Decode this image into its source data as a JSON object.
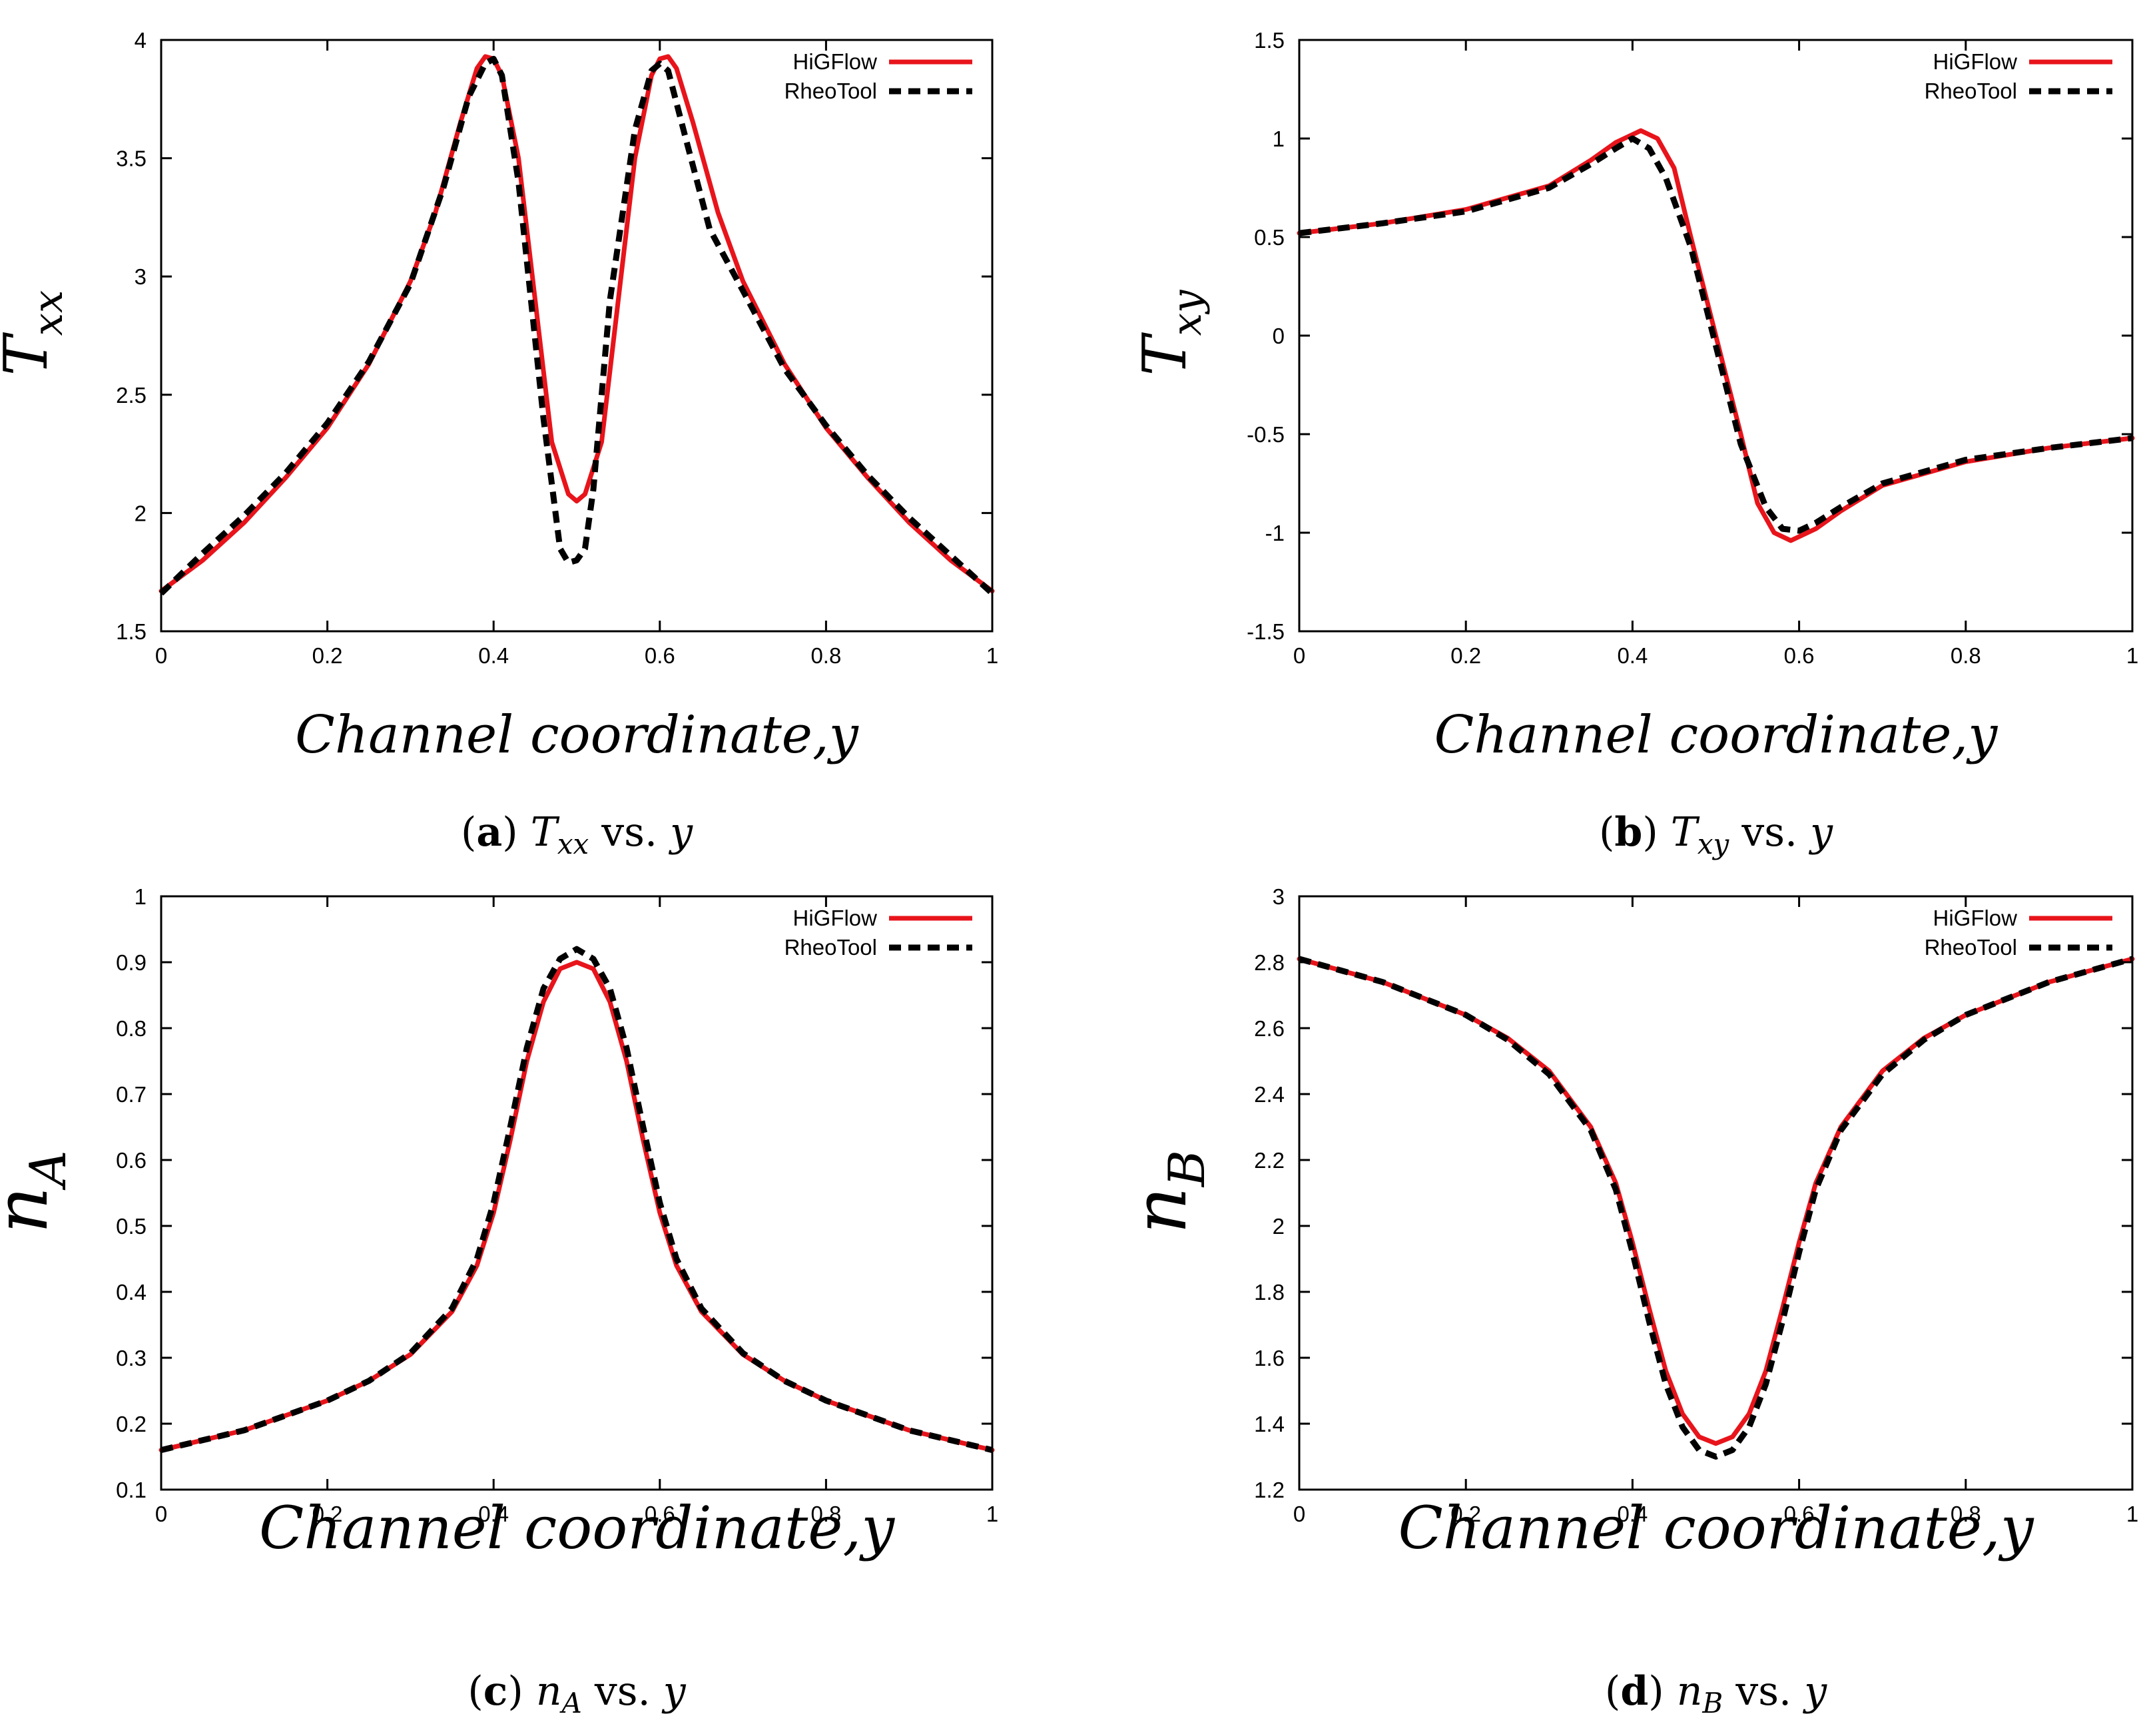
{
  "figure": {
    "captions": [
      {
        "letter": "a",
        "symbol": "T",
        "sub": "xx",
        "suffix": " vs. ",
        "var": "y"
      },
      {
        "letter": "b",
        "symbol": "T",
        "sub": "xy",
        "suffix": " vs. ",
        "var": "y"
      },
      {
        "letter": "c",
        "symbol": "n",
        "sub": "A",
        "suffix": " vs. ",
        "var": "y"
      },
      {
        "letter": "d",
        "symbol": "n",
        "sub": "B",
        "suffix": " vs. ",
        "var": "y"
      }
    ]
  },
  "colors": {
    "higflow": "#e8141b",
    "rheotool": "#000000",
    "axis": "#000000"
  },
  "chart_data": [
    {
      "type": "line",
      "id": "a",
      "ylabel_symbol": "T",
      "ylabel_sub": "xx",
      "xlabel": "Channel coordinate,y",
      "xlim": [
        0,
        1
      ],
      "ylim": [
        1.5,
        4
      ],
      "xticks": [
        0,
        0.2,
        0.4,
        0.6,
        0.8,
        1
      ],
      "xtick_labels": [
        "0",
        "0.2",
        "0.4",
        "0.6",
        "0.8",
        "1"
      ],
      "yticks": [
        1.5,
        2,
        2.5,
        3,
        3.5,
        4
      ],
      "ytick_labels": [
        "1.5",
        "2",
        "2.5",
        "3",
        "3.5",
        "4"
      ],
      "legend": [
        "HiGFlow",
        "RheoTool"
      ],
      "series": [
        {
          "name": "HiGFlow",
          "style": "solid",
          "x": [
            0,
            0.05,
            0.1,
            0.15,
            0.2,
            0.25,
            0.3,
            0.33,
            0.36,
            0.38,
            0.39,
            0.4,
            0.41,
            0.43,
            0.45,
            0.47,
            0.49,
            0.5,
            0.51,
            0.53,
            0.55,
            0.57,
            0.59,
            0.6,
            0.61,
            0.62,
            0.64,
            0.67,
            0.7,
            0.75,
            0.8,
            0.85,
            0.9,
            0.95,
            1
          ],
          "y": [
            1.67,
            1.8,
            1.96,
            2.15,
            2.36,
            2.63,
            2.98,
            3.27,
            3.65,
            3.88,
            3.93,
            3.92,
            3.85,
            3.5,
            2.9,
            2.3,
            2.08,
            2.05,
            2.08,
            2.3,
            2.9,
            3.5,
            3.85,
            3.92,
            3.93,
            3.88,
            3.65,
            3.27,
            2.98,
            2.63,
            2.36,
            2.15,
            1.96,
            1.8,
            1.67
          ]
        },
        {
          "name": "RheoTool",
          "style": "dashed",
          "x": [
            0,
            0.05,
            0.1,
            0.15,
            0.2,
            0.25,
            0.3,
            0.34,
            0.37,
            0.39,
            0.4,
            0.41,
            0.43,
            0.46,
            0.48,
            0.49,
            0.5,
            0.51,
            0.52,
            0.54,
            0.57,
            0.59,
            0.6,
            0.61,
            0.63,
            0.66,
            0.7,
            0.75,
            0.8,
            0.85,
            0.9,
            0.95,
            1
          ],
          "y": [
            1.66,
            1.83,
            1.99,
            2.17,
            2.38,
            2.64,
            2.97,
            3.38,
            3.76,
            3.9,
            3.92,
            3.85,
            3.4,
            2.4,
            1.85,
            1.79,
            1.8,
            1.85,
            2.1,
            2.9,
            3.62,
            3.87,
            3.9,
            3.87,
            3.6,
            3.2,
            2.94,
            2.61,
            2.37,
            2.16,
            1.98,
            1.82,
            1.66
          ]
        }
      ]
    },
    {
      "type": "line",
      "id": "b",
      "ylabel_symbol": "T",
      "ylabel_sub": "xy",
      "xlabel": "Channel coordinate,y",
      "xlim": [
        0,
        1
      ],
      "ylim": [
        -1.5,
        1.5
      ],
      "xticks": [
        0,
        0.2,
        0.4,
        0.6,
        0.8,
        1
      ],
      "xtick_labels": [
        "0",
        "0.2",
        "0.4",
        "0.6",
        "0.8",
        "1"
      ],
      "yticks": [
        -1.5,
        -1,
        -0.5,
        0,
        0.5,
        1,
        1.5
      ],
      "ytick_labels": [
        "-1.5",
        "-1",
        "-0.5",
        "0",
        "0.5",
        "1",
        "1.5"
      ],
      "legend": [
        "HiGFlow",
        "RheoTool"
      ],
      "series": [
        {
          "name": "HiGFlow",
          "style": "solid",
          "x": [
            0,
            0.1,
            0.2,
            0.3,
            0.35,
            0.38,
            0.41,
            0.43,
            0.45,
            0.47,
            0.5,
            0.53,
            0.55,
            0.57,
            0.59,
            0.62,
            0.65,
            0.7,
            0.8,
            0.9,
            1
          ],
          "y": [
            0.52,
            0.57,
            0.64,
            0.76,
            0.89,
            0.98,
            1.04,
            1.0,
            0.85,
            0.5,
            0.0,
            -0.5,
            -0.85,
            -1.0,
            -1.04,
            -0.98,
            -0.89,
            -0.76,
            -0.64,
            -0.57,
            -0.52
          ]
        },
        {
          "name": "RheoTool",
          "style": "dashed",
          "x": [
            0,
            0.1,
            0.2,
            0.3,
            0.35,
            0.38,
            0.4,
            0.42,
            0.44,
            0.47,
            0.5,
            0.53,
            0.56,
            0.58,
            0.6,
            0.62,
            0.65,
            0.7,
            0.8,
            0.9,
            1
          ],
          "y": [
            0.52,
            0.57,
            0.63,
            0.75,
            0.87,
            0.95,
            1.0,
            0.95,
            0.8,
            0.45,
            -0.05,
            -0.55,
            -0.87,
            -0.98,
            -0.99,
            -0.95,
            -0.87,
            -0.75,
            -0.63,
            -0.57,
            -0.52
          ]
        }
      ]
    },
    {
      "type": "line",
      "id": "c",
      "ylabel_symbol": "n",
      "ylabel_sub": "A",
      "xlabel": "Channel coordinate,y",
      "xlim": [
        0,
        1
      ],
      "ylim": [
        0.1,
        1
      ],
      "xticks": [
        0,
        0.2,
        0.4,
        0.6,
        0.8,
        1
      ],
      "xtick_labels": [
        "0",
        "0.2",
        "0.4",
        "0.6",
        "0.8",
        "1"
      ],
      "yticks": [
        0.1,
        0.2,
        0.3,
        0.4,
        0.5,
        0.6,
        0.7,
        0.8,
        0.9,
        1
      ],
      "ytick_labels": [
        "0.1",
        "0.2",
        "0.3",
        "0.4",
        "0.5",
        "0.6",
        "0.7",
        "0.8",
        "0.9",
        "1"
      ],
      "legend": [
        "HiGFlow",
        "RheoTool"
      ],
      "series": [
        {
          "name": "HiGFlow",
          "style": "solid",
          "x": [
            0,
            0.1,
            0.2,
            0.25,
            0.3,
            0.35,
            0.38,
            0.4,
            0.42,
            0.44,
            0.46,
            0.48,
            0.5,
            0.52,
            0.54,
            0.56,
            0.58,
            0.6,
            0.62,
            0.65,
            0.7,
            0.75,
            0.8,
            0.9,
            1
          ],
          "y": [
            0.16,
            0.19,
            0.235,
            0.265,
            0.305,
            0.37,
            0.44,
            0.52,
            0.63,
            0.75,
            0.84,
            0.89,
            0.9,
            0.89,
            0.84,
            0.75,
            0.63,
            0.52,
            0.44,
            0.37,
            0.305,
            0.265,
            0.235,
            0.19,
            0.16
          ]
        },
        {
          "name": "RheoTool",
          "style": "dashed",
          "x": [
            0,
            0.1,
            0.2,
            0.25,
            0.3,
            0.35,
            0.38,
            0.4,
            0.42,
            0.44,
            0.46,
            0.48,
            0.5,
            0.52,
            0.54,
            0.56,
            0.58,
            0.6,
            0.62,
            0.65,
            0.7,
            0.75,
            0.8,
            0.9,
            1
          ],
          "y": [
            0.16,
            0.19,
            0.235,
            0.265,
            0.307,
            0.375,
            0.45,
            0.535,
            0.65,
            0.77,
            0.86,
            0.905,
            0.92,
            0.905,
            0.86,
            0.77,
            0.65,
            0.535,
            0.45,
            0.375,
            0.307,
            0.265,
            0.235,
            0.19,
            0.16
          ]
        }
      ]
    },
    {
      "type": "line",
      "id": "d",
      "ylabel_symbol": "n",
      "ylabel_sub": "B",
      "xlabel": "Channel coordinate,y",
      "xlim": [
        0,
        1
      ],
      "ylim": [
        1.2,
        3
      ],
      "xticks": [
        0,
        0.2,
        0.4,
        0.6,
        0.8,
        1
      ],
      "xtick_labels": [
        "0",
        "0.2",
        "0.4",
        "0.6",
        "0.8",
        "1"
      ],
      "yticks": [
        1.2,
        1.4,
        1.6,
        1.8,
        2,
        2.2,
        2.4,
        2.6,
        2.8,
        3
      ],
      "ytick_labels": [
        "1.2",
        "1.4",
        "1.6",
        "1.8",
        "2",
        "2.2",
        "2.4",
        "2.6",
        "2.8",
        "3"
      ],
      "legend": [
        "HiGFlow",
        "RheoTool"
      ],
      "series": [
        {
          "name": "HiGFlow",
          "style": "solid",
          "x": [
            0,
            0.1,
            0.2,
            0.25,
            0.3,
            0.35,
            0.38,
            0.4,
            0.42,
            0.44,
            0.46,
            0.48,
            0.5,
            0.52,
            0.54,
            0.56,
            0.58,
            0.6,
            0.62,
            0.65,
            0.7,
            0.75,
            0.8,
            0.9,
            1
          ],
          "y": [
            2.81,
            2.74,
            2.64,
            2.57,
            2.47,
            2.3,
            2.13,
            1.95,
            1.75,
            1.56,
            1.43,
            1.36,
            1.34,
            1.36,
            1.43,
            1.56,
            1.75,
            1.95,
            2.13,
            2.3,
            2.47,
            2.57,
            2.64,
            2.74,
            2.81
          ]
        },
        {
          "name": "RheoTool",
          "style": "dashed",
          "x": [
            0,
            0.1,
            0.2,
            0.25,
            0.3,
            0.35,
            0.38,
            0.4,
            0.42,
            0.44,
            0.46,
            0.48,
            0.5,
            0.52,
            0.54,
            0.56,
            0.58,
            0.6,
            0.62,
            0.65,
            0.7,
            0.75,
            0.8,
            0.9,
            1
          ],
          "y": [
            2.81,
            2.74,
            2.64,
            2.565,
            2.46,
            2.29,
            2.11,
            1.92,
            1.71,
            1.52,
            1.39,
            1.32,
            1.3,
            1.32,
            1.39,
            1.52,
            1.71,
            1.92,
            2.11,
            2.29,
            2.46,
            2.565,
            2.64,
            2.74,
            2.81
          ]
        }
      ]
    }
  ]
}
